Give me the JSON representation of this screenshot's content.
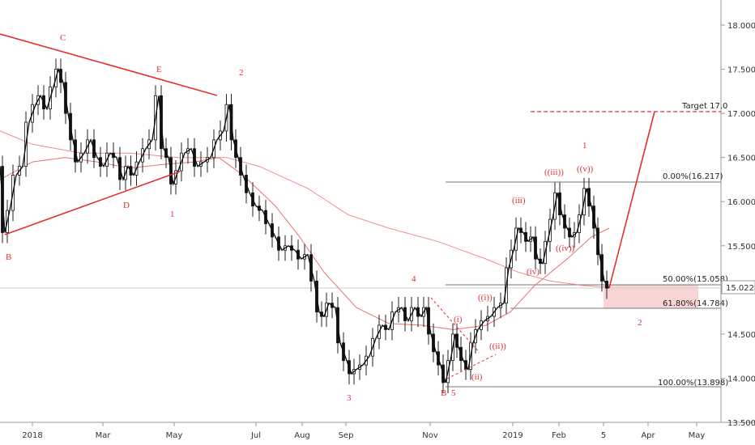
{
  "chart_data": {
    "type": "candlestick",
    "x_axis": {
      "ticks": [
        "2018",
        "Mar",
        "May",
        "Jul",
        "Aug",
        "Sep",
        "Nov",
        "2019",
        "Feb",
        "5",
        "Apr",
        "May"
      ]
    },
    "y_axis": {
      "min": 13.5,
      "max": 18.3,
      "ticks": [
        "18.000",
        "17.500",
        "17.000",
        "16.500",
        "16.000",
        "15.500",
        "15.000",
        "14.500",
        "14.000",
        "13.500"
      ]
    },
    "last_price": "15.022",
    "fib_levels": [
      {
        "label": "0.00%(16.217)",
        "value": 16.217
      },
      {
        "label": "50.00%(15.058)",
        "value": 15.058
      },
      {
        "label": "61.80%(14.784)",
        "value": 14.784
      },
      {
        "label": "100.00%(13.898)",
        "value": 13.898
      }
    ],
    "target_label": "Target 17.0",
    "target_value": 17.0,
    "wave_labels": [
      "C",
      "E",
      "2",
      "D",
      "1",
      "B",
      "4",
      "3",
      "((i))",
      "(i)",
      "((ii))",
      "(ii)",
      "B",
      "5",
      "((iii))",
      "(iii)",
      "((iv))",
      "(iv)",
      "((v))",
      "1",
      "2"
    ],
    "price_points": [
      [
        0,
        16.4
      ],
      [
        6,
        15.65
      ],
      [
        12,
        15.9
      ],
      [
        20,
        16.3
      ],
      [
        28,
        16.4
      ],
      [
        36,
        16.9
      ],
      [
        44,
        17.1
      ],
      [
        50,
        17.2
      ],
      [
        58,
        17.05
      ],
      [
        66,
        17.3
      ],
      [
        72,
        17.5
      ],
      [
        78,
        17.35
      ],
      [
        84,
        17.0
      ],
      [
        90,
        16.7
      ],
      [
        96,
        16.45
      ],
      [
        104,
        16.55
      ],
      [
        112,
        16.7
      ],
      [
        120,
        16.5
      ],
      [
        128,
        16.4
      ],
      [
        136,
        16.55
      ],
      [
        144,
        16.5
      ],
      [
        152,
        16.25
      ],
      [
        158,
        16.4
      ],
      [
        165,
        16.3
      ],
      [
        172,
        16.45
      ],
      [
        180,
        16.6
      ],
      [
        188,
        16.7
      ],
      [
        196,
        17.2
      ],
      [
        202,
        16.6
      ],
      [
        208,
        16.5
      ],
      [
        214,
        16.2
      ],
      [
        220,
        16.35
      ],
      [
        228,
        16.55
      ],
      [
        236,
        16.6
      ],
      [
        244,
        16.4
      ],
      [
        252,
        16.45
      ],
      [
        260,
        16.5
      ],
      [
        268,
        16.7
      ],
      [
        276,
        16.8
      ],
      [
        283,
        17.1
      ],
      [
        288,
        16.7
      ],
      [
        294,
        16.5
      ],
      [
        300,
        16.3
      ],
      [
        308,
        16.1
      ],
      [
        316,
        15.95
      ],
      [
        324,
        15.9
      ],
      [
        332,
        15.75
      ],
      [
        340,
        15.6
      ],
      [
        348,
        15.45
      ],
      [
        356,
        15.5
      ],
      [
        364,
        15.45
      ],
      [
        372,
        15.35
      ],
      [
        380,
        15.4
      ],
      [
        388,
        15.1
      ],
      [
        394,
        14.75
      ],
      [
        400,
        14.7
      ],
      [
        406,
        14.85
      ],
      [
        414,
        14.8
      ],
      [
        420,
        14.4
      ],
      [
        428,
        14.2
      ],
      [
        434,
        14.05
      ],
      [
        440,
        14.1
      ],
      [
        448,
        14.15
      ],
      [
        456,
        14.25
      ],
      [
        464,
        14.45
      ],
      [
        472,
        14.6
      ],
      [
        480,
        14.55
      ],
      [
        488,
        14.75
      ],
      [
        496,
        14.8
      ],
      [
        504,
        14.65
      ],
      [
        512,
        14.8
      ],
      [
        520,
        14.7
      ],
      [
        526,
        14.8
      ],
      [
        532,
        14.5
      ],
      [
        538,
        14.3
      ],
      [
        544,
        14.15
      ],
      [
        550,
        13.95
      ],
      [
        556,
        14.2
      ],
      [
        562,
        14.5
      ],
      [
        566,
        14.35
      ],
      [
        572,
        14.2
      ],
      [
        578,
        14.1
      ],
      [
        584,
        14.4
      ],
      [
        590,
        14.55
      ],
      [
        598,
        14.65
      ],
      [
        606,
        14.7
      ],
      [
        614,
        14.8
      ],
      [
        622,
        14.85
      ],
      [
        628,
        15.25
      ],
      [
        634,
        15.45
      ],
      [
        640,
        15.7
      ],
      [
        646,
        15.65
      ],
      [
        652,
        15.55
      ],
      [
        658,
        15.6
      ],
      [
        664,
        15.35
      ],
      [
        670,
        15.3
      ],
      [
        676,
        15.55
      ],
      [
        682,
        15.8
      ],
      [
        688,
        16.1
      ],
      [
        694,
        15.85
      ],
      [
        700,
        15.7
      ],
      [
        706,
        15.6
      ],
      [
        712,
        15.65
      ],
      [
        718,
        15.85
      ],
      [
        724,
        16.15
      ],
      [
        730,
        15.95
      ],
      [
        736,
        15.7
      ],
      [
        740,
        15.4
      ],
      [
        746,
        15.1
      ],
      [
        752,
        15.02
      ]
    ],
    "ma_fast_points": [
      [
        0,
        16.25
      ],
      [
        40,
        16.45
      ],
      [
        80,
        16.5
      ],
      [
        120,
        16.45
      ],
      [
        160,
        16.38
      ],
      [
        200,
        16.42
      ],
      [
        240,
        16.45
      ],
      [
        270,
        16.5
      ],
      [
        300,
        16.3
      ],
      [
        340,
        15.95
      ],
      [
        370,
        15.6
      ],
      [
        400,
        15.2
      ],
      [
        440,
        14.8
      ],
      [
        480,
        14.62
      ],
      [
        520,
        14.6
      ],
      [
        560,
        14.55
      ],
      [
        600,
        14.6
      ],
      [
        630,
        14.75
      ],
      [
        660,
        15.05
      ],
      [
        700,
        15.35
      ],
      [
        730,
        15.6
      ],
      [
        752,
        15.7
      ]
    ],
    "ma_slow_points": [
      [
        0,
        16.8
      ],
      [
        40,
        16.65
      ],
      [
        100,
        16.55
      ],
      [
        160,
        16.55
      ],
      [
        220,
        16.5
      ],
      [
        280,
        16.5
      ],
      [
        320,
        16.4
      ],
      [
        380,
        16.15
      ],
      [
        430,
        15.85
      ],
      [
        480,
        15.7
      ],
      [
        540,
        15.55
      ],
      [
        600,
        15.35
      ],
      [
        640,
        15.2
      ],
      [
        680,
        15.1
      ],
      [
        720,
        15.05
      ],
      [
        752,
        15.03
      ]
    ]
  }
}
